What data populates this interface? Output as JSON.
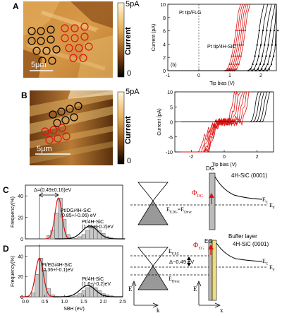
{
  "panels": {
    "A": {
      "label": "A",
      "scale_bar": "5μm",
      "colorbar_top": "5pA",
      "colorbar_bottom": "0",
      "colorbar_title": "Current"
    },
    "A_plot": {
      "sub": "(b)",
      "series1": "Pt tip/FLG",
      "series2": "Pt tip/4H-SiC",
      "xlabel": "Tip bias (V)",
      "ylabel": "Current (pA)",
      "xticks": [
        "-1",
        "0",
        "1",
        "2"
      ],
      "yticks": [
        "10",
        "8",
        "6",
        "4",
        "2",
        "0"
      ]
    },
    "B": {
      "label": "B",
      "scale_bar": "5μm",
      "colorbar_top": "5pA",
      "colorbar_bottom": "0",
      "colorbar_title": "Current"
    },
    "B_plot": {
      "xlabel": "Tip bias (V)",
      "ylabel": "Current (pA)",
      "xticks": [
        "-2",
        "0",
        "2"
      ],
      "yticks": [
        "10",
        "5",
        "0",
        "-5",
        "-10"
      ]
    },
    "C": {
      "label": "C",
      "delta": "Δ=(0.49±0.16)eV",
      "peak1_name": "Pt/DG/4H-SiC",
      "peak1_val": "(0.85+/-0.06) eV",
      "peak2_name": "Pt/4H-SiC",
      "peak2_val": "(1.66+/-0.2)eV",
      "ylabel": "Frequency(%)",
      "yticks": [
        "40",
        "20",
        "0"
      ]
    },
    "D": {
      "label": "D",
      "peak1_name": "Pt/EG/4H-SiC",
      "peak1_val": "(0.36+/-0.1)eV",
      "peak2_name": "Pt/4H-SiC",
      "peak2_val": "(1.6+/-0.2)eV",
      "ylabel": "Frequency(%)",
      "yticks": [
        "40",
        "20",
        "0"
      ],
      "xticks": [
        "0.0",
        "0.5",
        "1.0",
        "1.5",
        "2.0",
        "2.5"
      ],
      "xlabel": "SBH (eV)"
    },
    "band_top": {
      "dg": "DG",
      "substrate": "4H-SiC (0001)",
      "phi": "Φ",
      "phi_sub": "DG",
      "ef_left": "E",
      "ef_left_sub": "F,DG",
      "ef_eq": "=E",
      "ef_eq_sub": "Dirac",
      "ec": "E",
      "ec_sub": "C",
      "ef": "E",
      "ef_sub": "F"
    },
    "band_bottom": {
      "buffer": "Buffer layer",
      "eg": "EG",
      "substrate": "4H-SiC (0001)",
      "phi": "Φ",
      "phi_sub": "EG",
      "efeg": "E",
      "efeg_sub": "F,EG",
      "delta": "Δ~0.49 eV",
      "edirac": "E",
      "edirac_sub": "Dirac",
      "ec": "E",
      "ec_sub": "C",
      "ef": "E",
      "ef_sub": "F",
      "e_axis": "E",
      "k_axis": "k",
      "x_axis": "x"
    }
  },
  "chart_data": [
    {
      "type": "line",
      "title": "",
      "xlabel": "Tip bias (V)",
      "ylabel": "Current (pA)",
      "xlim": [
        -1,
        2.5
      ],
      "ylim": [
        0,
        10
      ],
      "series": [
        {
          "name": "Pt tip/FLG",
          "onset_x": [
            0.85,
            1.15
          ],
          "color": "#e01010"
        },
        {
          "name": "Pt tip/4H-SiC",
          "onset_x": [
            1.6,
            2.2
          ],
          "color": "#000000"
        }
      ]
    },
    {
      "type": "line",
      "title": "",
      "xlabel": "Tip bias (V)",
      "ylabel": "Current (pA)",
      "xlim": [
        -3,
        3
      ],
      "ylim": [
        -10,
        10
      ],
      "series": [
        {
          "onset_x": [
            0.1,
            1.0
          ],
          "color": "#e01010"
        },
        {
          "onset_x": [
            1.6,
            2.3
          ],
          "color": "#000000"
        }
      ]
    },
    {
      "type": "bar",
      "title": "",
      "xlabel": "",
      "ylabel": "Frequency(%)",
      "ylim": [
        0,
        50
      ],
      "categories": [
        "0.3",
        "0.4",
        "0.5",
        "0.6",
        "0.7",
        "0.8",
        "0.9",
        "1.0",
        "1.1",
        "1.2",
        "1.3",
        "1.4",
        "1.5",
        "1.6",
        "1.7",
        "1.8",
        "1.9",
        "2.0",
        "2.1",
        "2.2"
      ],
      "values": [
        0,
        0,
        0,
        3,
        8,
        24,
        38,
        18,
        4,
        1,
        0,
        2,
        4,
        8,
        11,
        12,
        8,
        5,
        2,
        1
      ],
      "fits": [
        {
          "name": "Pt/DG/4H-SiC",
          "center": 0.85,
          "sigma": 0.06,
          "color": "#e01010"
        },
        {
          "name": "Pt/4H-SiC",
          "center": 1.66,
          "sigma": 0.2,
          "color": "#000000"
        }
      ]
    },
    {
      "type": "bar",
      "title": "",
      "xlabel": "SBH (eV)",
      "ylabel": "Frequency(%)",
      "xlim": [
        0,
        2.5
      ],
      "ylim": [
        0,
        50
      ],
      "categories": [
        "0.2",
        "0.3",
        "0.4",
        "0.5",
        "0.6",
        "0.7",
        "0.8",
        "0.9",
        "1.0",
        "1.1",
        "1.2",
        "1.3",
        "1.4",
        "1.5",
        "1.6",
        "1.7",
        "1.8",
        "1.9",
        "2.0",
        "2.1",
        "2.2"
      ],
      "values": [
        4,
        22,
        38,
        26,
        8,
        2,
        0,
        0,
        0,
        0,
        0,
        1,
        3,
        6,
        9,
        11,
        9,
        6,
        3,
        2,
        1
      ],
      "fits": [
        {
          "name": "Pt/EG/4H-SiC",
          "center": 0.36,
          "sigma": 0.1,
          "color": "#e01010"
        },
        {
          "name": "Pt/4H-SiC",
          "center": 1.6,
          "sigma": 0.2,
          "color": "#000000"
        }
      ]
    }
  ],
  "colors": {
    "red": "#e01010",
    "afm_dark": "#3a2008",
    "afm_light": "#f6e2a8"
  }
}
